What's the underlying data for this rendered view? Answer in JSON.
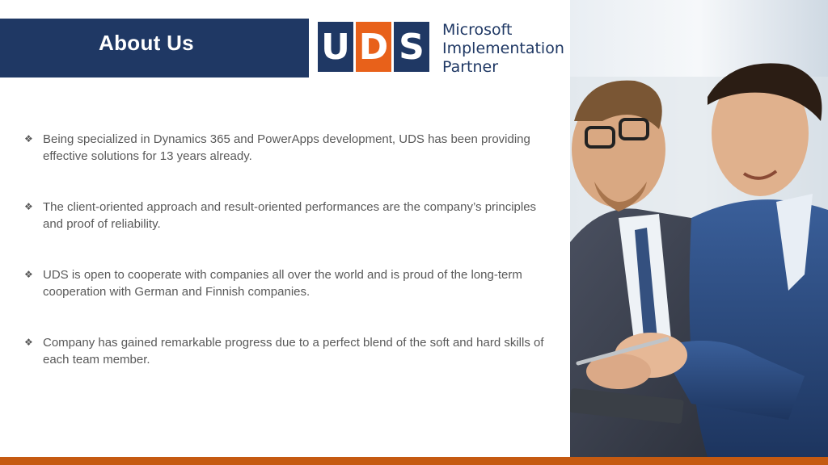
{
  "header": {
    "title": "About Us"
  },
  "logo": {
    "letters": [
      "U",
      "D",
      "S"
    ],
    "line1": "Microsoft",
    "line2": "Implementation",
    "line3": "Partner"
  },
  "bullets": [
    {
      "text": "Being specialized in Dynamics 365 and PowerApps development, UDS has been providing effective solutions for 13 years already."
    },
    {
      "text": "The client-oriented approach and result-oriented performances are the company’s principles and proof of reliability."
    },
    {
      "text": "UDS is open to cooperate with companies all over the world and is proud of the long-term cooperation with German and Finnish companies."
    },
    {
      "text": "Company has gained remarkable progress due to a perfect blend of the soft and hard skills of each team member."
    }
  ],
  "colors": {
    "navy": "#1f3864",
    "orange": "#e8611a",
    "bottom_bar": "#c55a11",
    "body_text": "#595959"
  },
  "icons": {
    "bullet": "four-diamond-bullet-icon"
  }
}
